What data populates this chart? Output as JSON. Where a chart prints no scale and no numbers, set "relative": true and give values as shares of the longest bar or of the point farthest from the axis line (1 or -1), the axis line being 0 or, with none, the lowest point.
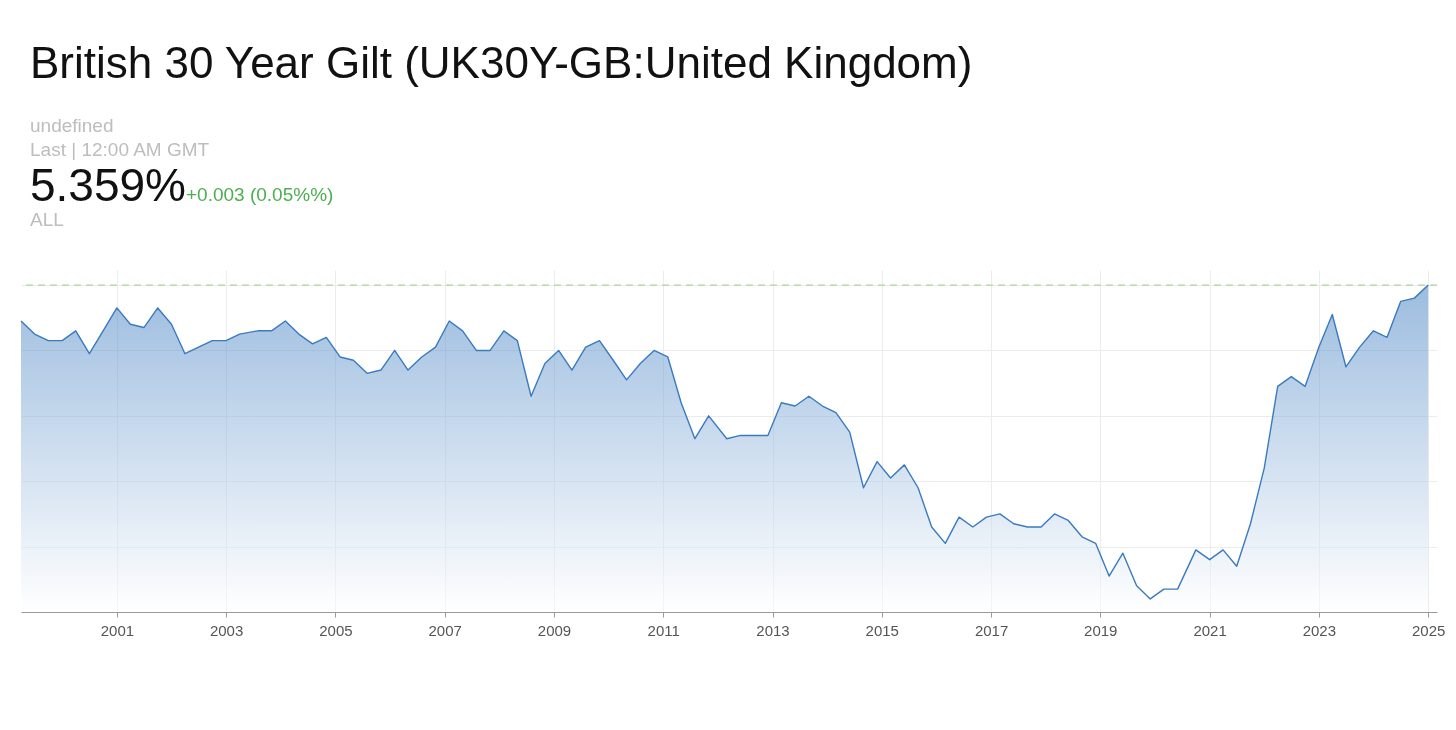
{
  "chart_data": {
    "type": "area",
    "title": "British 30 Year Gilt (UK30Y-GB:United Kingdom)",
    "annotations": [
      "undefined",
      "Last | 12:00 AM GMT",
      "5.359%",
      "+0.003 (0.05%%)",
      "ALL"
    ],
    "relative": true,
    "color": "#3a7abf",
    "grid": true,
    "x": [
      "1999-04",
      "1999-07",
      "1999-10",
      "2000-01",
      "2000-04",
      "2000-07",
      "2000-10",
      "2001-01",
      "2001-04",
      "2001-07",
      "2001-10",
      "2002-01",
      "2002-04",
      "2002-07",
      "2002-10",
      "2003-01",
      "2003-04",
      "2003-08",
      "2003-11",
      "2004-02",
      "2004-05",
      "2004-08",
      "2004-11",
      "2005-02",
      "2005-05",
      "2005-08",
      "2005-11",
      "2006-02",
      "2006-05",
      "2006-08",
      "2006-11",
      "2007-02",
      "2007-05",
      "2007-08",
      "2007-11",
      "2008-02",
      "2008-05",
      "2008-08",
      "2008-11",
      "2009-02",
      "2009-05",
      "2009-08",
      "2009-11",
      "2010-02",
      "2010-05",
      "2010-08",
      "2010-11",
      "2011-02",
      "2011-05",
      "2011-08",
      "2011-11",
      "2012-03",
      "2012-06",
      "2012-09",
      "2012-12",
      "2013-03",
      "2013-06",
      "2013-09",
      "2013-12",
      "2014-03",
      "2014-06",
      "2014-09",
      "2014-12",
      "2015-03",
      "2015-06",
      "2015-09",
      "2015-12",
      "2016-03",
      "2016-06",
      "2016-09",
      "2016-12",
      "2017-03",
      "2017-06",
      "2017-09",
      "2017-12",
      "2018-03",
      "2018-06",
      "2018-09",
      "2018-12",
      "2019-03",
      "2019-06",
      "2019-09",
      "2019-12",
      "2020-03",
      "2020-06",
      "2020-10",
      "2021-01",
      "2021-04",
      "2021-07",
      "2021-10",
      "2022-01",
      "2022-04",
      "2022-07",
      "2022-10",
      "2023-01",
      "2023-04",
      "2023-07",
      "2023-10",
      "2024-01",
      "2024-04",
      "2024-07",
      "2024-10",
      "2025-01"
    ],
    "values": [
      0.89,
      0.85,
      0.83,
      0.83,
      0.86,
      0.79,
      0.86,
      0.93,
      0.88,
      0.87,
      0.93,
      0.88,
      0.79,
      0.81,
      0.83,
      0.83,
      0.85,
      0.86,
      0.86,
      0.89,
      0.85,
      0.82,
      0.84,
      0.78,
      0.77,
      0.73,
      0.74,
      0.8,
      0.74,
      0.78,
      0.81,
      0.89,
      0.86,
      0.8,
      0.8,
      0.86,
      0.83,
      0.66,
      0.76,
      0.8,
      0.74,
      0.81,
      0.83,
      0.77,
      0.71,
      0.76,
      0.8,
      0.78,
      0.64,
      0.53,
      0.6,
      0.53,
      0.54,
      0.54,
      0.54,
      0.64,
      0.63,
      0.66,
      0.63,
      0.61,
      0.55,
      0.38,
      0.46,
      0.41,
      0.45,
      0.38,
      0.26,
      0.21,
      0.29,
      0.26,
      0.29,
      0.3,
      0.27,
      0.26,
      0.26,
      0.3,
      0.28,
      0.23,
      0.21,
      0.11,
      0.18,
      0.08,
      0.04,
      0.07,
      0.07,
      0.19,
      0.16,
      0.19,
      0.14,
      0.27,
      0.44,
      0.69,
      0.72,
      0.69,
      0.81,
      0.91,
      0.75,
      0.81,
      0.86,
      0.84,
      0.95,
      0.96,
      1
    ],
    "xlim": [
      "1999-04",
      "2025-03"
    ],
    "xticks": [
      {
        "value": "2001",
        "label": "2001"
      },
      {
        "value": "2003",
        "label": "2003"
      },
      {
        "value": "2005",
        "label": "2005"
      },
      {
        "value": "2007",
        "label": "2007"
      },
      {
        "value": "2009",
        "label": "2009"
      },
      {
        "value": "2011",
        "label": "2011"
      },
      {
        "value": "2013",
        "label": "2013"
      },
      {
        "value": "2015",
        "label": "2015"
      },
      {
        "value": "2017",
        "label": "2017"
      },
      {
        "value": "2019",
        "label": "2019"
      },
      {
        "value": "2021",
        "label": "2021"
      },
      {
        "value": "2023",
        "label": "2023"
      },
      {
        "value": "2025",
        "label": "2025"
      }
    ],
    "ref_lines": [
      {
        "axis": "y",
        "value": 1,
        "color": "#a8d69c",
        "line_style": "dashed"
      }
    ]
  }
}
